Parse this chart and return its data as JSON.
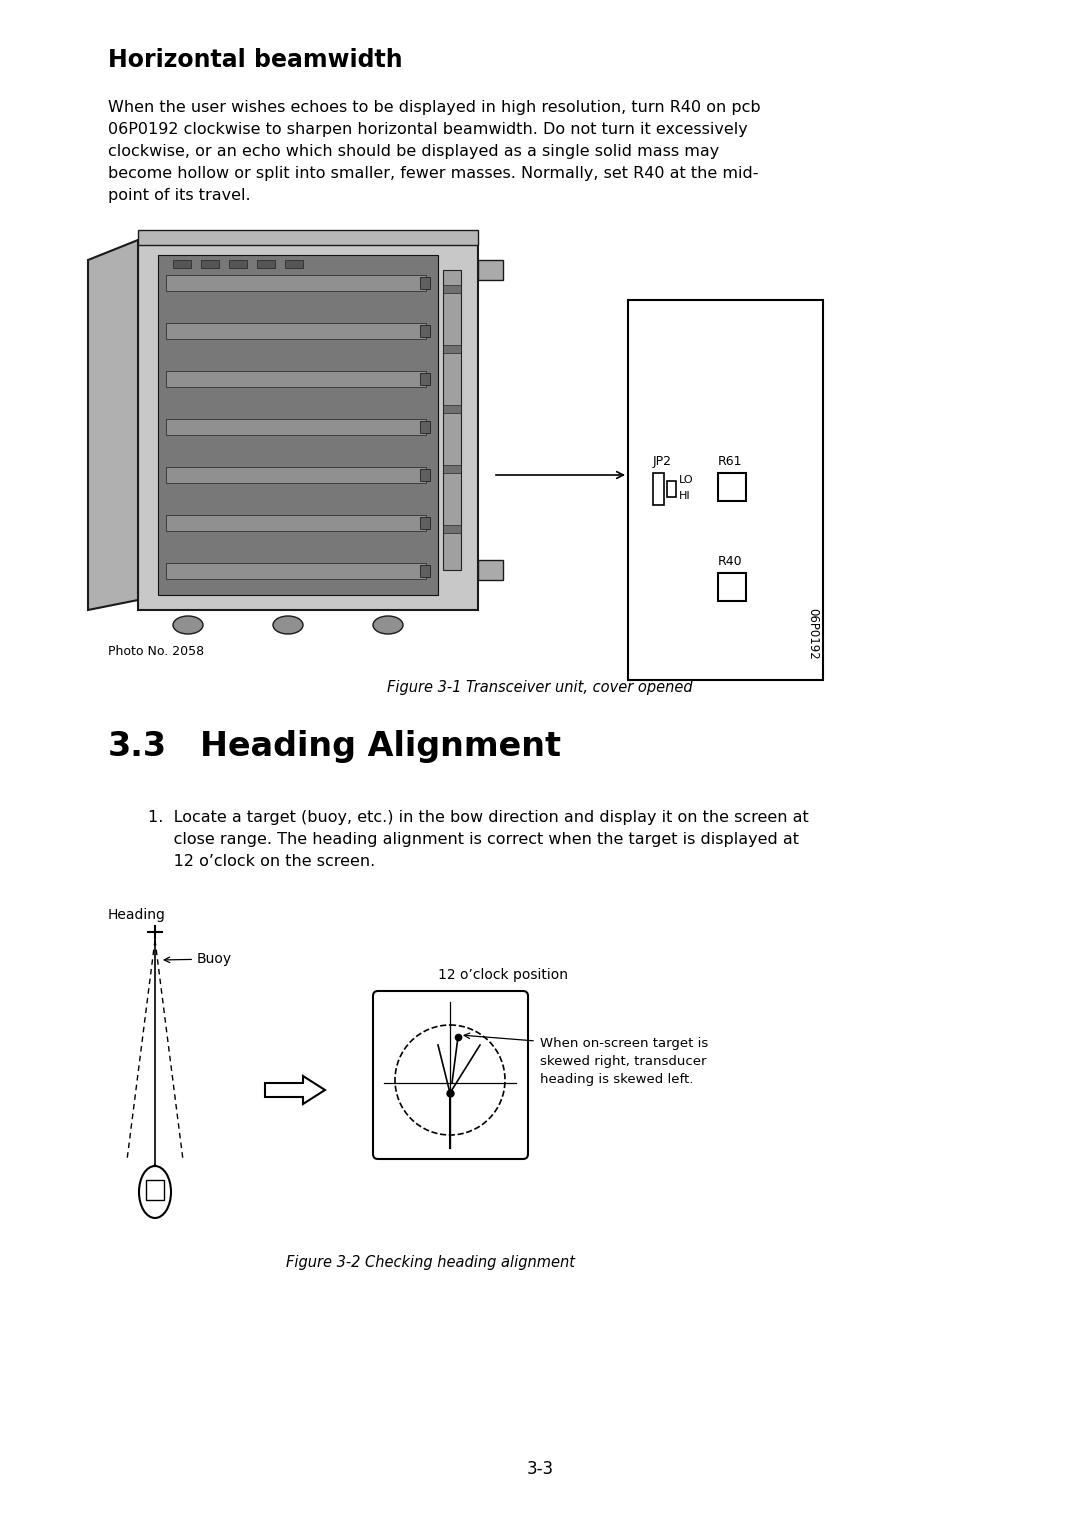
{
  "page_bg": "#ffffff",
  "section_heading": "Horizontal beamwidth",
  "body_text_1_lines": [
    "When the user wishes echoes to be displayed in high resolution, turn R40 on pcb",
    "06P0192 clockwise to sharpen horizontal beamwidth. Do not turn it excessively",
    "clockwise, or an echo which should be displayed as a single solid mass may",
    "become hollow or split into smaller, fewer masses. Normally, set R40 at the mid-",
    "point of its travel."
  ],
  "photo_no": "Photo No. 2058",
  "figure1_caption": "Figure 3-1 Transceiver unit, cover opened",
  "pcb_label": "06P0192",
  "jp2_label": "JP2",
  "lo_label": "LO",
  "hi_label": "HI",
  "r61_label": "R61",
  "r40_label": "R40",
  "section_33_num": "3.3",
  "section_33_title": "Heading Alignment",
  "body_text_2_lines": [
    "1.  Locate a target (buoy, etc.) in the bow direction and display it on the screen at",
    "     close range. The heading alignment is correct when the target is displayed at",
    "     12 o’clock on the screen."
  ],
  "heading_label": "Heading",
  "buoy_label": "Buoy",
  "clock_label": "12 o’clock position",
  "clock_note_lines": [
    "When on-screen target is",
    "skewed right, transducer",
    "heading is skewed left."
  ],
  "figure2_caption": "Figure 3-2 Checking heading alignment",
  "page_number": "3-3",
  "text_color": "#000000",
  "line_color": "#000000"
}
